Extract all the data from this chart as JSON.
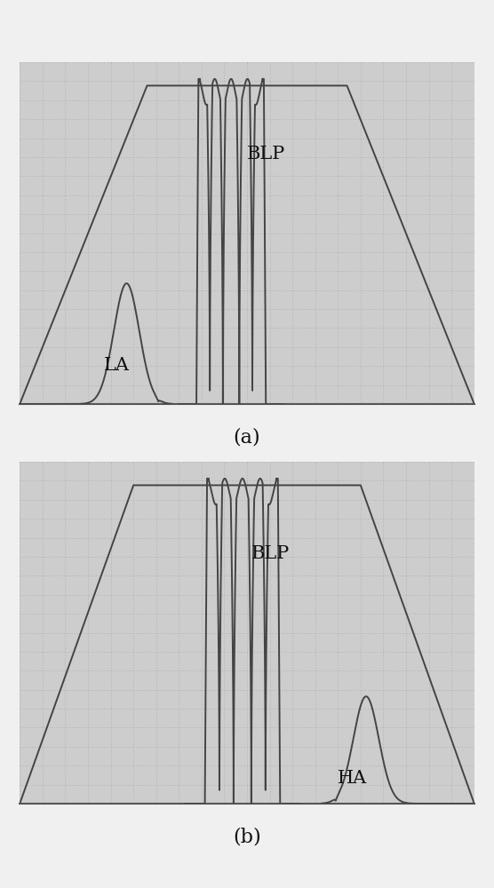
{
  "title_a": "(a)",
  "title_b": "(b)",
  "label_blp": "BLP",
  "label_la": "LA",
  "label_ha": "HA",
  "bg_color": "#cdcdcd",
  "line_color": "#444444",
  "grid_major_color": "#999999",
  "grid_minor_color": "#bbbbbb",
  "text_color": "#111111",
  "fig_bg": "#f0f0f0"
}
